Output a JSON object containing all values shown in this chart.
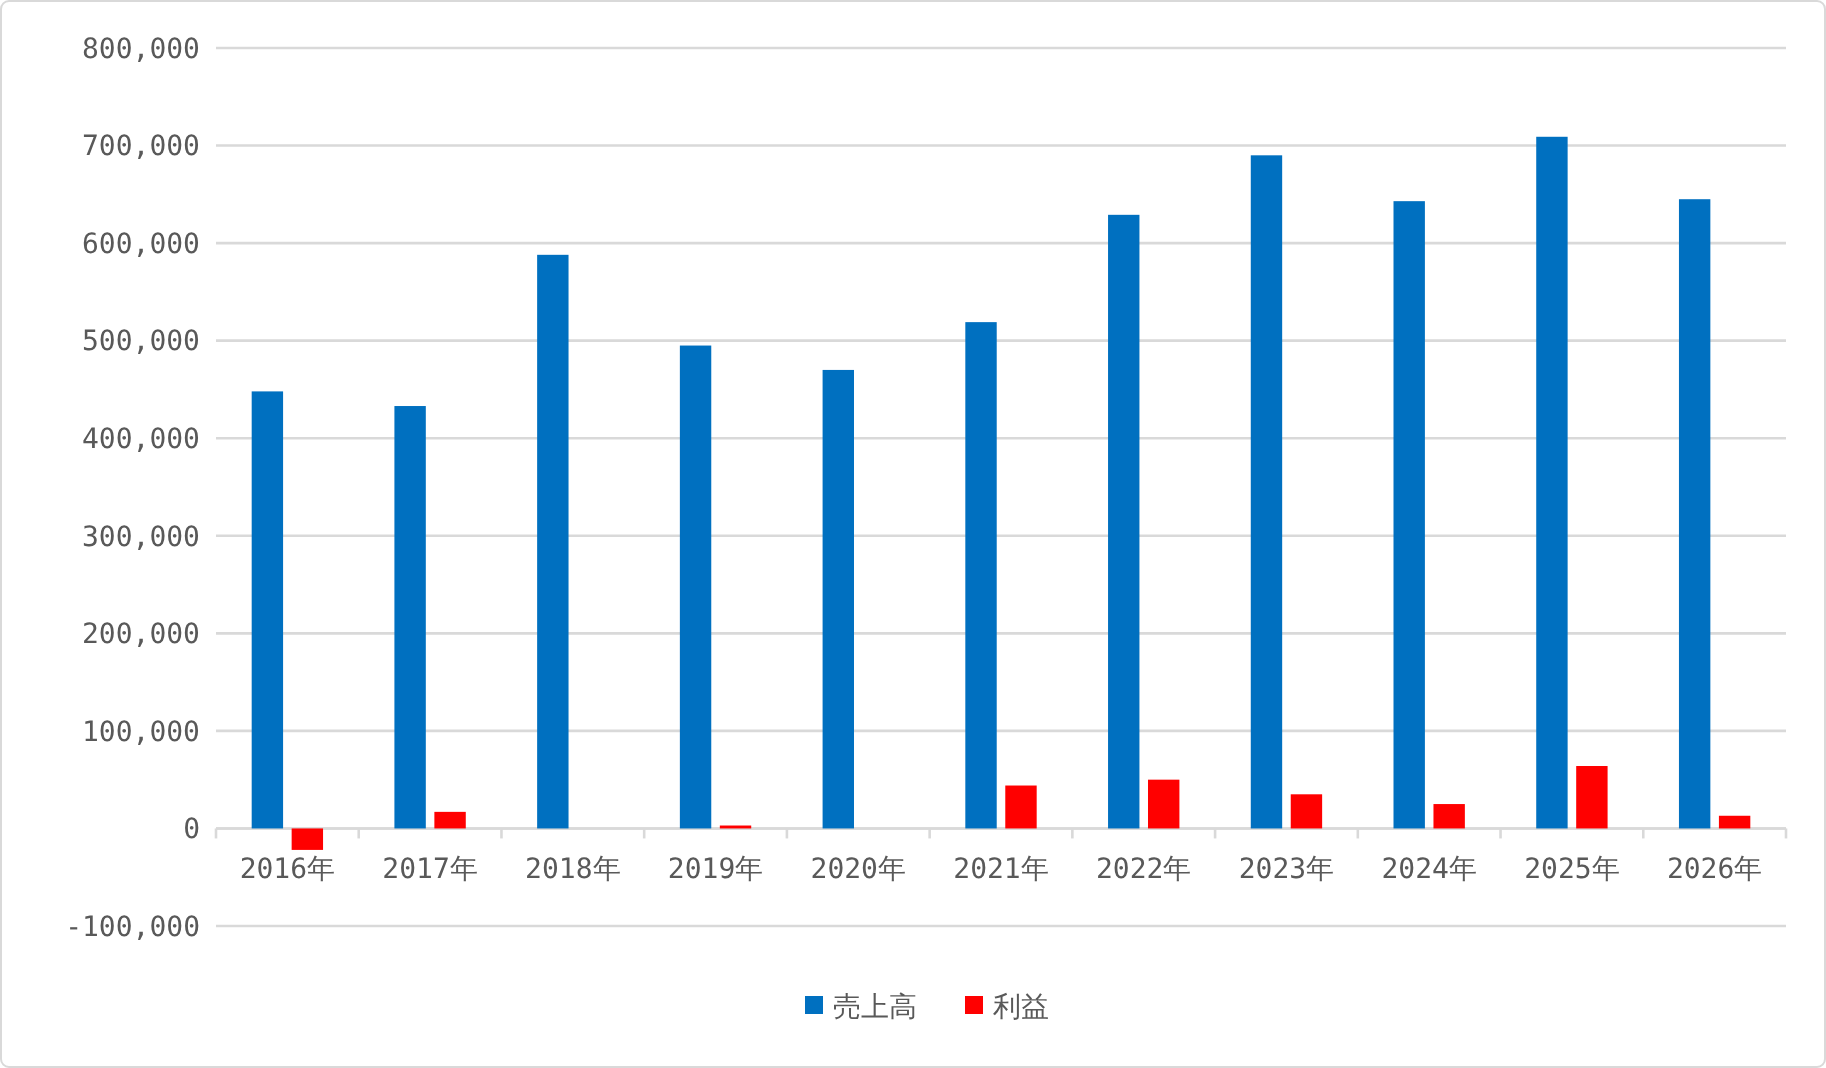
{
  "chart_data": {
    "type": "bar",
    "categories": [
      "2016年",
      "2017年",
      "2018年",
      "2019年",
      "2020年",
      "2021年",
      "2022年",
      "2023年",
      "2024年",
      "2025年",
      "2026年"
    ],
    "series": [
      {
        "name": "売上高",
        "color": "#0070c0",
        "values": [
          448000,
          433000,
          588000,
          495000,
          470000,
          519000,
          629000,
          690000,
          643000,
          709000,
          645000
        ]
      },
      {
        "name": "利益",
        "color": "#ff0000",
        "values": [
          -22000,
          17000,
          0,
          3000,
          0,
          44000,
          50000,
          35000,
          25000,
          64000,
          13000
        ]
      }
    ],
    "ylim": [
      -100000,
      800000
    ],
    "yticks": [
      {
        "value": -100000,
        "label": "-100,000"
      },
      {
        "value": 0,
        "label": "0"
      },
      {
        "value": 100000,
        "label": "100,000"
      },
      {
        "value": 200000,
        "label": "200,000"
      },
      {
        "value": 300000,
        "label": "300,000"
      },
      {
        "value": 400000,
        "label": "400,000"
      },
      {
        "value": 500000,
        "label": "500,000"
      },
      {
        "value": 600000,
        "label": "600,000"
      },
      {
        "value": 700000,
        "label": "700,000"
      },
      {
        "value": 800000,
        "label": "800,000"
      }
    ],
    "grid": "y",
    "legend": "bottom"
  }
}
